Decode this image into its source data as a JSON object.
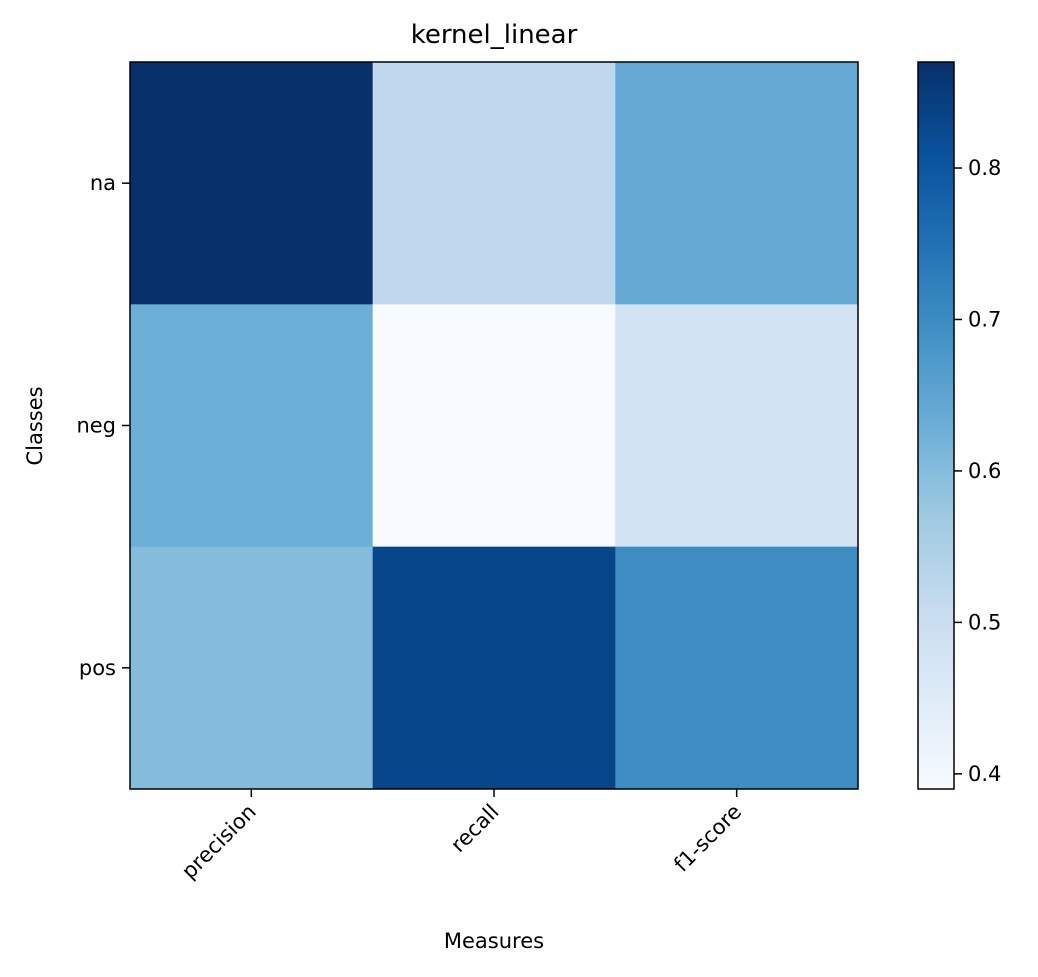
{
  "chart_data": {
    "type": "heatmap",
    "title": "kernel_linear",
    "xlabel": "Measures",
    "ylabel": "Classes",
    "x_categories": [
      "precision",
      "recall",
      "f1-score"
    ],
    "y_categories": [
      "na",
      "neg",
      "pos"
    ],
    "values": [
      [
        0.87,
        0.52,
        0.64
      ],
      [
        0.63,
        0.39,
        0.48
      ],
      [
        0.6,
        0.83,
        0.7
      ]
    ],
    "colorbar": {
      "range": [
        0.39,
        0.87
      ],
      "ticks": [
        "0.4",
        "0.5",
        "0.6",
        "0.7",
        "0.8"
      ],
      "colormap": "Blues"
    },
    "grid": false
  }
}
